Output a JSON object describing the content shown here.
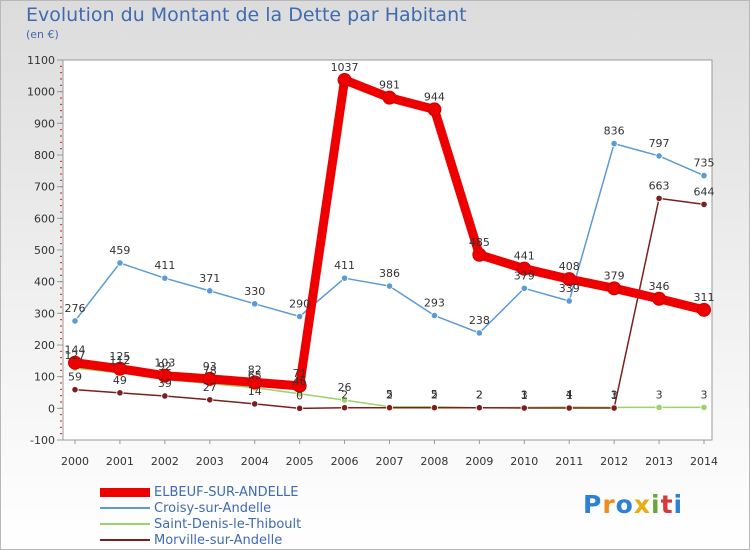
{
  "header": {
    "title": "Evolution du Montant de la Dette par Habitant",
    "subtitle": "(en €)"
  },
  "logo": {
    "text": "Proxiti",
    "letters": [
      "P",
      "r",
      "o",
      "x",
      "i",
      "t",
      "i"
    ],
    "colors": [
      "#2e7fd6",
      "#f08a1c",
      "#2e7fd6",
      "#e9ac12",
      "#6aa638",
      "#d63a3a",
      "#2e7fd6"
    ]
  },
  "chart_data": {
    "type": "line",
    "title": "Evolution du Montant de la Dette par Habitant",
    "subtitle": "(en €)",
    "xlabel": "",
    "ylabel": "",
    "x": [
      "2000",
      "2001",
      "2002",
      "2003",
      "2004",
      "2005",
      "2006",
      "2007",
      "2008",
      "2009",
      "2010",
      "2011",
      "2012",
      "2013",
      "2014"
    ],
    "yticks": [
      "-100",
      "0",
      "100",
      "200",
      "300",
      "400",
      "500",
      "600",
      "700",
      "800",
      "900",
      "1000",
      "1100"
    ],
    "ylim": [
      -100,
      1100
    ],
    "grid": false,
    "legend_position": "bottom-left",
    "series": [
      {
        "name": "ELBEUF-SUR-ANDELLE",
        "color": "#ee0000",
        "values": [
          144,
          125,
          103,
          93,
          82,
          71,
          1037,
          981,
          944,
          485,
          441,
          408,
          379,
          346,
          311
        ],
        "labels": [
          "144",
          "125",
          "103",
          "93",
          "82",
          "71",
          "1037",
          "981",
          "944",
          "485",
          "441",
          "408",
          "379",
          "346",
          "311"
        ]
      },
      {
        "name": "Croisy-sur-Andelle",
        "color": "#5b9bd5",
        "values": [
          276,
          459,
          411,
          371,
          330,
          290,
          411,
          386,
          293,
          238,
          379,
          339,
          836,
          797,
          735
        ],
        "labels": [
          "276",
          "459",
          "411",
          "371",
          "330",
          "290",
          "411",
          "386",
          "293",
          "238",
          "379",
          "339",
          "836",
          "797",
          "735"
        ]
      },
      {
        "name": "Saint-Denis-le-Thiboult",
        "color": "#9bd36a",
        "values": [
          127,
          112,
          92,
          78,
          65,
          46,
          26,
          5,
          5,
          2,
          3,
          4,
          3,
          3,
          3
        ],
        "labels": [
          "127",
          "112",
          "92",
          "78",
          "65",
          "46",
          "26",
          "5",
          "5",
          "2",
          "3",
          "4",
          "3",
          "3",
          "3"
        ]
      },
      {
        "name": "Morville-sur-Andelle",
        "color": "#7a2020",
        "values": [
          59,
          49,
          39,
          27,
          14,
          0,
          2,
          2,
          2,
          2,
          1,
          1,
          1,
          663,
          644
        ],
        "labels": [
          "59",
          "49",
          "39",
          "27",
          "14",
          "0",
          "2",
          "2",
          "2",
          "2",
          "1",
          "1",
          "1",
          "663",
          "644"
        ]
      }
    ]
  }
}
